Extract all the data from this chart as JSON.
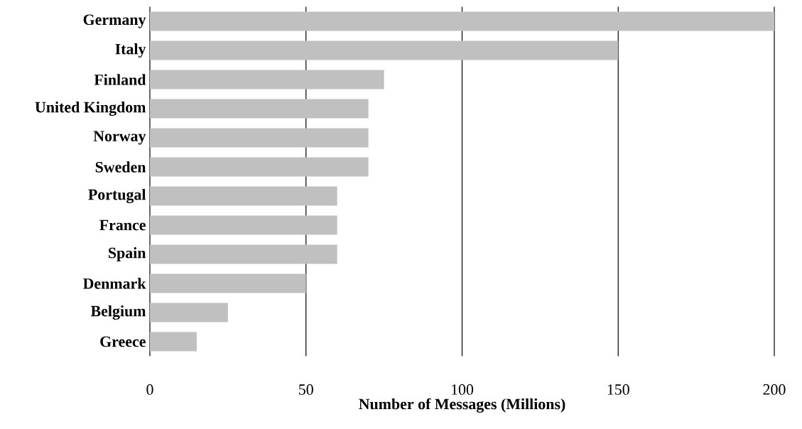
{
  "chart_data": {
    "type": "bar",
    "orientation": "horizontal",
    "categories": [
      "Germany",
      "Italy",
      "Finland",
      "United Kingdom",
      "Norway",
      "Sweden",
      "Portugal",
      "France",
      "Spain",
      "Denmark",
      "Belgium",
      "Greece"
    ],
    "values": [
      200,
      150,
      75,
      70,
      70,
      70,
      60,
      60,
      60,
      50,
      25,
      15
    ],
    "color": "#c0c0c0",
    "xlabel": "Number of Messages (Millions)",
    "xlim": [
      0,
      200
    ],
    "xticks": [
      0,
      50,
      100,
      150,
      200
    ],
    "grid": "x"
  }
}
